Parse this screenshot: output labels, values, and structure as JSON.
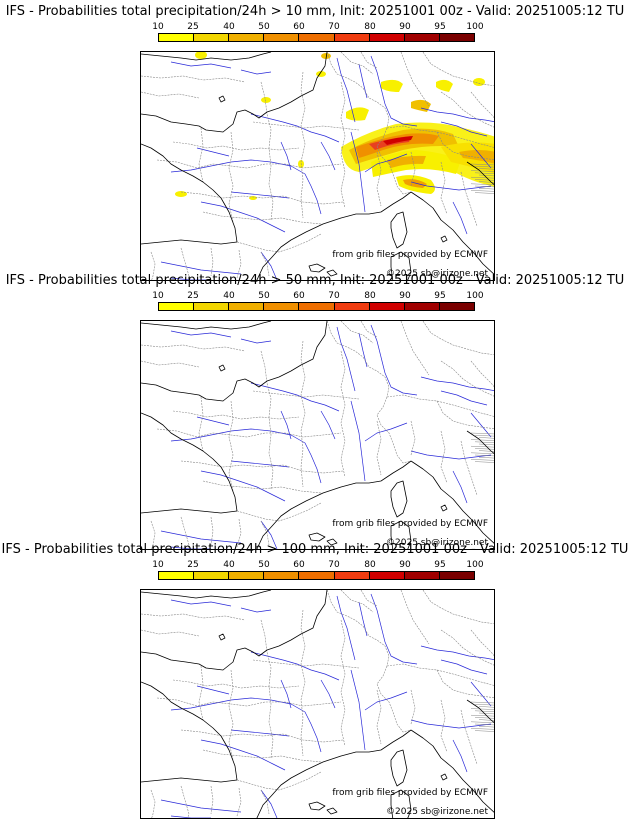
{
  "colorbar": {
    "ticks": [
      "10",
      "25",
      "40",
      "50",
      "60",
      "70",
      "80",
      "90",
      "95",
      "100"
    ],
    "colors": [
      "#ffff00",
      "#f2d600",
      "#f0b000",
      "#f09000",
      "#ee6e00",
      "#f03c10",
      "#d00000",
      "#a00000",
      "#7a0000"
    ]
  },
  "panels": [
    {
      "title": "IFS - Probabilities total precipitation/24h > 10 mm, Init: 20251001 00z - Valid: 20251005:12 TU",
      "credit": "from grib files provided by ECMWF",
      "copyright": "©2025 sb@irizone.net",
      "has_rain": true
    },
    {
      "title": "IFS - Probabilities total precipitation/24h > 50 mm, Init: 20251001 00z - Valid: 20251005:12 TU",
      "credit": "from grib files provided by ECMWF",
      "copyright": "©2025 sb@irizone.net",
      "has_rain": false
    },
    {
      "title": "IFS - Probabilities total precipitation/24h > 100 mm, Init: 20251001 00z - Valid: 20251005:12 TU",
      "credit": "from grib files provided by ECMWF",
      "copyright": "©2025 sb@irizone.net",
      "has_rain": false
    }
  ],
  "colors": {
    "coast": "#000000",
    "border": "#888888",
    "river": "#2a2ad8"
  }
}
